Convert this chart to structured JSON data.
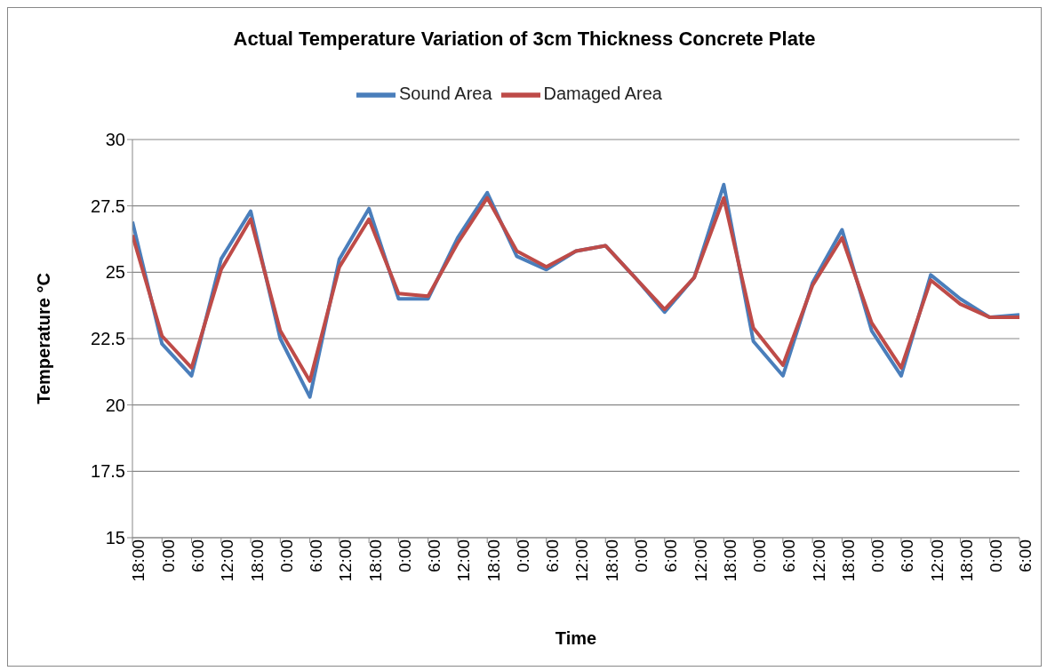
{
  "chart_data": {
    "type": "line",
    "title": "Actual Temperature Variation of 3cm Thickness Concrete Plate",
    "xlabel": "Time",
    "ylabel": "Temperature °C",
    "categories": [
      "18:00",
      "0:00",
      "6:00",
      "12:00",
      "18:00",
      "0:00",
      "6:00",
      "12:00",
      "18:00",
      "0:00",
      "6:00",
      "12:00",
      "18:00",
      "0:00",
      "6:00",
      "12:00",
      "18:00",
      "0:00",
      "6:00",
      "12:00",
      "18:00",
      "0:00",
      "6:00",
      "12:00",
      "18:00",
      "0:00",
      "6:00",
      "12:00",
      "18:00",
      "0:00",
      "6:00"
    ],
    "series": [
      {
        "name": "Sound Area",
        "color": "#4a7ebb",
        "values": [
          26.9,
          22.3,
          21.1,
          25.5,
          27.3,
          22.5,
          20.3,
          25.5,
          27.4,
          24.0,
          24.0,
          26.3,
          28.0,
          25.6,
          25.1,
          25.8,
          26.0,
          24.8,
          23.5,
          24.8,
          28.3,
          22.4,
          21.1,
          24.6,
          26.6,
          22.8,
          21.1,
          24.9,
          24.0,
          23.3,
          23.4
        ]
      },
      {
        "name": "Damaged Area",
        "color": "#be4b48",
        "values": [
          26.4,
          22.6,
          21.4,
          25.1,
          27.0,
          22.8,
          20.9,
          25.2,
          27.0,
          24.2,
          24.1,
          26.1,
          27.8,
          25.8,
          25.2,
          25.8,
          26.0,
          24.8,
          23.6,
          24.8,
          27.8,
          22.9,
          21.5,
          24.5,
          26.3,
          23.1,
          21.4,
          24.7,
          23.8,
          23.3,
          23.3
        ]
      }
    ],
    "ylim": [
      15,
      30
    ],
    "yticks": [
      15,
      17.5,
      20,
      22.5,
      25,
      27.5,
      30
    ],
    "grid": "y",
    "legend": "top",
    "marker": "none",
    "line_style": "solid"
  }
}
